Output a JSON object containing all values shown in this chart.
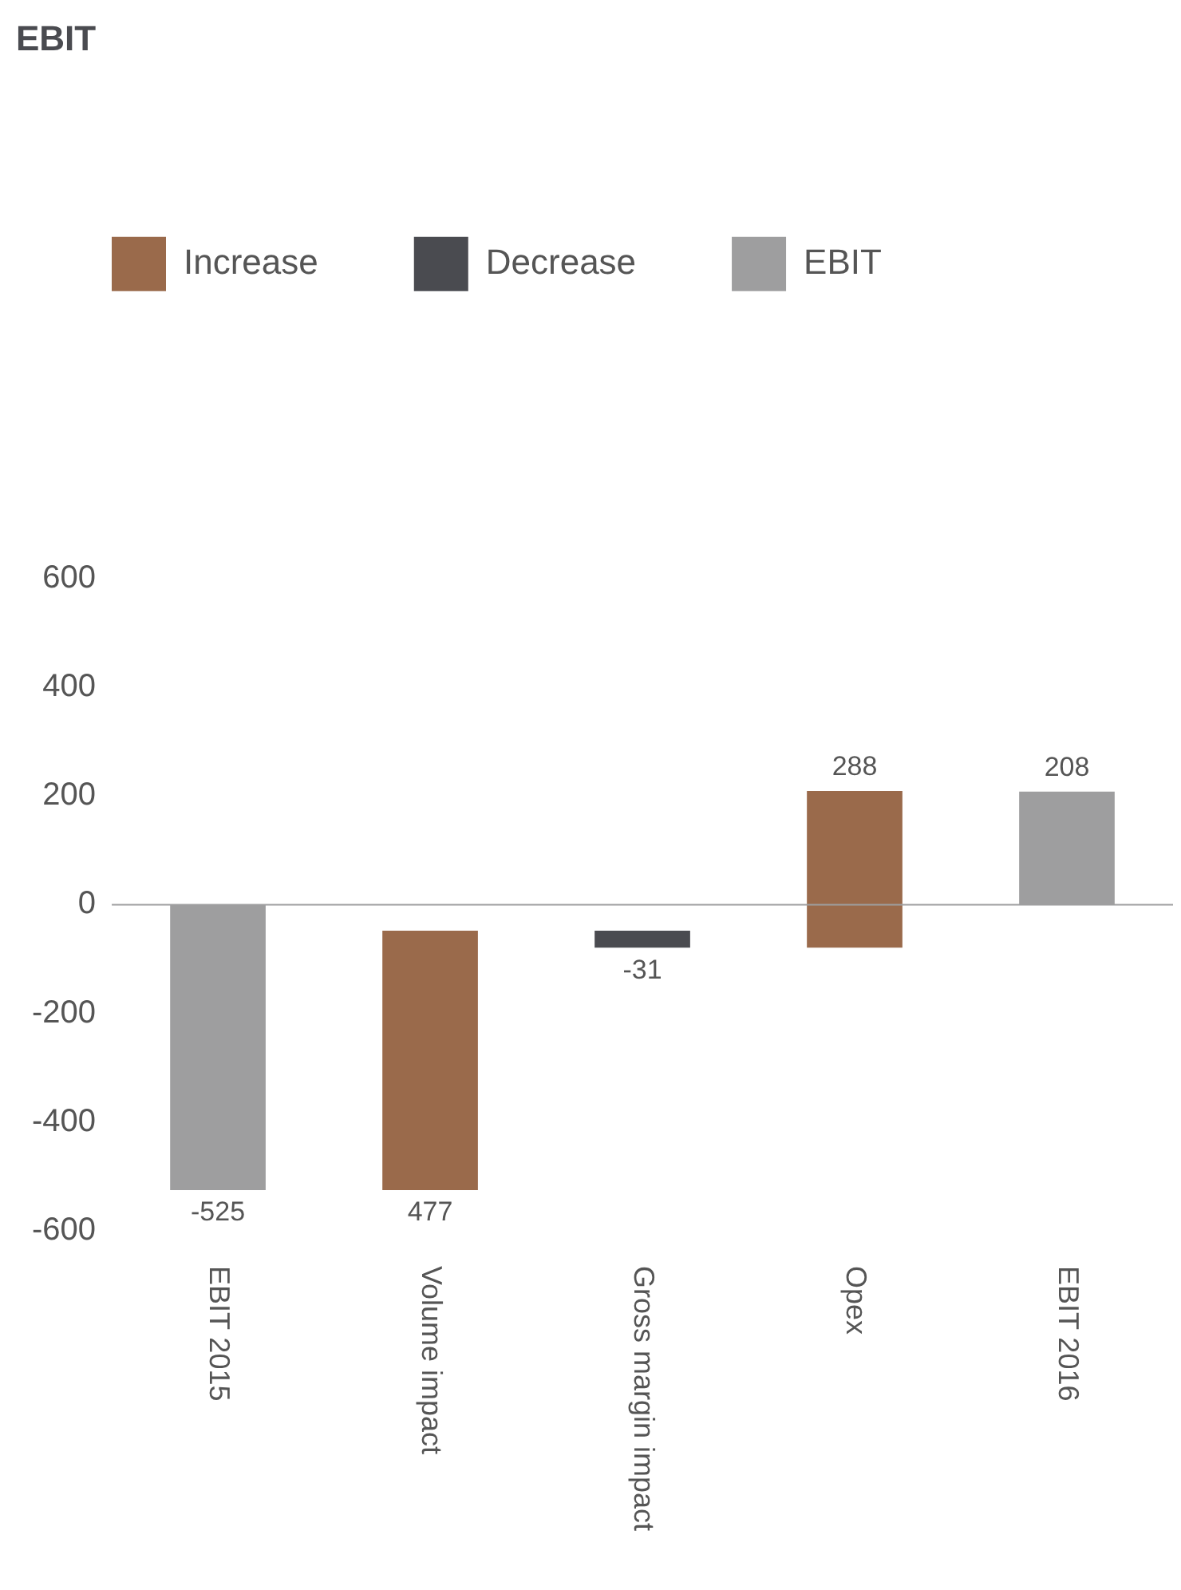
{
  "chart_data": {
    "type": "bar",
    "title": "EBIT",
    "categories": [
      "EBIT 2015",
      "Volume impact",
      "Gross margin impact",
      "Opex",
      "EBIT 2016"
    ],
    "series": [
      {
        "name": "Increase",
        "color": "#9a6a4b",
        "values": [
          null,
          477,
          null,
          288,
          null
        ],
        "base": [
          null,
          -525,
          null,
          -79,
          null
        ]
      },
      {
        "name": "Decrease",
        "color": "#4a4b50",
        "values": [
          null,
          null,
          -31,
          null,
          null
        ],
        "base": [
          null,
          null,
          -48,
          null,
          null
        ]
      },
      {
        "name": "EBIT",
        "color": "#9e9e9f",
        "values": [
          -525,
          null,
          null,
          null,
          208
        ],
        "base": [
          0,
          null,
          null,
          null,
          0
        ]
      }
    ],
    "ylim": [
      -600,
      600
    ],
    "yticks": [
      -600,
      -400,
      -200,
      0,
      200,
      400,
      600
    ],
    "grid": false,
    "legend": "top left",
    "data_labels": true,
    "ref_lines": [
      {
        "axis": "y",
        "value": 0,
        "color": "#9e9e9f"
      }
    ]
  }
}
